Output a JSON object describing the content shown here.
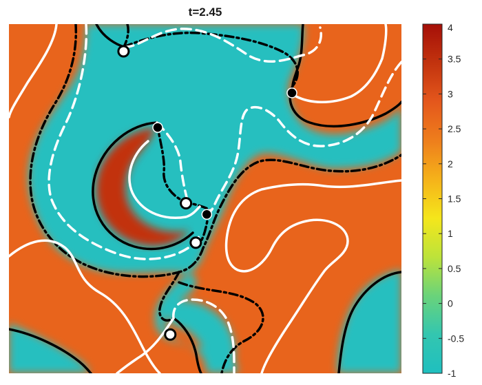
{
  "chart_data": {
    "type": "heatmap",
    "title": "t=2.45",
    "colorbar": {
      "min": -1,
      "max": 4,
      "ticks": [
        "4",
        "3.5",
        "3",
        "2.5",
        "2",
        "1.5",
        "1",
        "0.5",
        "0",
        "-0.5",
        "-1"
      ],
      "tick_values": [
        4,
        3.5,
        3,
        2.5,
        2,
        1.5,
        1,
        0.5,
        0,
        -0.5,
        -1
      ],
      "colormap": [
        "#1fbfbf",
        "#33c6b0",
        "#6ad37a",
        "#bde33a",
        "#f5e61b",
        "#f5b21a",
        "#ee7e1c",
        "#e4571c",
        "#c2330e",
        "#a50f08"
      ]
    },
    "colors": {
      "orange_region": "#e8641c",
      "teal_region": "#26bfbf",
      "contour_solid_black": "#000000",
      "contour_solid_white": "#ffffff",
      "contour_dash_black": "#000000",
      "contour_dash_white": "#ffffff"
    },
    "defects": [
      {
        "kind": "white",
        "u": 0.292,
        "v": 0.078
      },
      {
        "kind": "black",
        "u": 0.721,
        "v": 0.197
      },
      {
        "kind": "black",
        "u": 0.379,
        "v": 0.296
      },
      {
        "kind": "white",
        "u": 0.451,
        "v": 0.513
      },
      {
        "kind": "black",
        "u": 0.504,
        "v": 0.545
      },
      {
        "kind": "white",
        "u": 0.476,
        "v": 0.626
      },
      {
        "kind": "white",
        "u": 0.411,
        "v": 0.889
      }
    ],
    "grid": false
  }
}
